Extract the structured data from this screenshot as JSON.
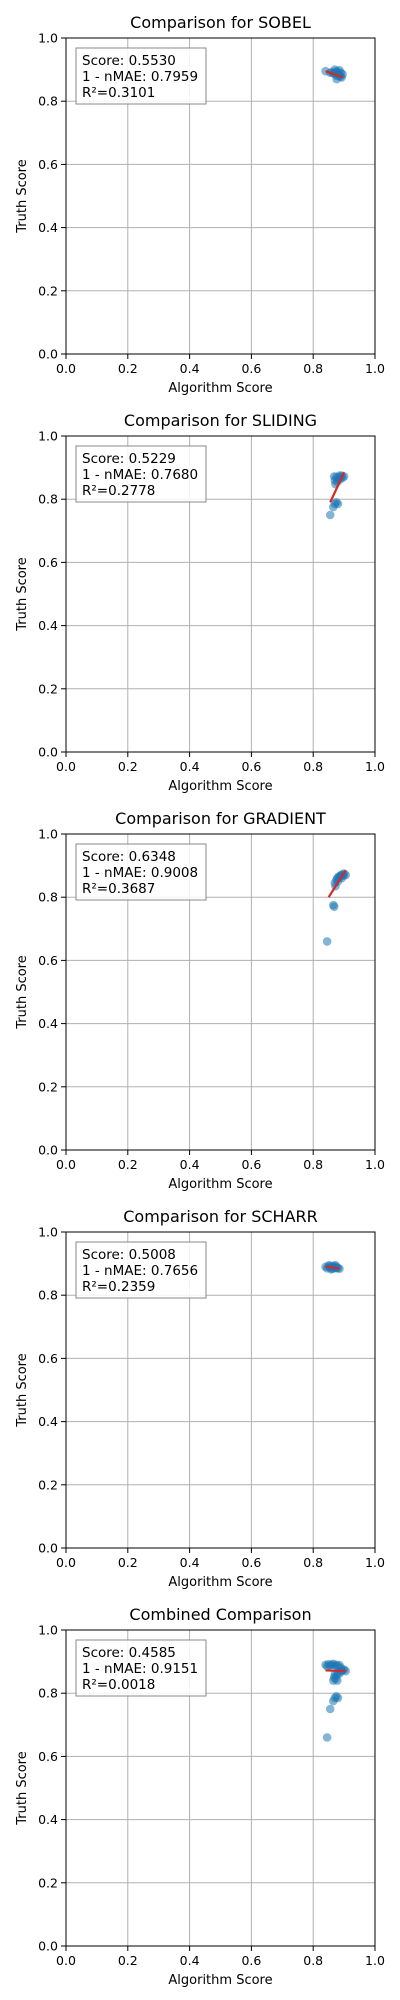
{
  "colors": {
    "point_fill": "#1f77b4",
    "fit_line": "#d62728",
    "grid": "#b0b0b0",
    "axes": "#000000"
  },
  "chart_data": [
    {
      "type": "scatter",
      "title": "Comparison for SOBEL",
      "xlabel": "Algorithm Score",
      "ylabel": "Truth Score",
      "xlim": [
        0,
        1
      ],
      "ylim": [
        0,
        1
      ],
      "xticks": [
        "0.0",
        "0.2",
        "0.4",
        "0.6",
        "0.8",
        "1.0"
      ],
      "yticks": [
        "0.0",
        "0.2",
        "0.4",
        "0.6",
        "0.8",
        "1.0"
      ],
      "grid": true,
      "stats": [
        "Score: 0.5530",
        "1 - nMAE: 0.7959",
        "R²=0.3101"
      ],
      "points": [
        [
          0.84,
          0.895
        ],
        [
          0.855,
          0.89
        ],
        [
          0.86,
          0.892
        ],
        [
          0.865,
          0.888
        ],
        [
          0.87,
          0.89
        ],
        [
          0.872,
          0.885
        ],
        [
          0.875,
          0.895
        ],
        [
          0.878,
          0.88
        ],
        [
          0.88,
          0.892
        ],
        [
          0.882,
          0.887
        ],
        [
          0.885,
          0.882
        ],
        [
          0.888,
          0.878
        ],
        [
          0.89,
          0.89
        ],
        [
          0.892,
          0.875
        ],
        [
          0.895,
          0.885
        ],
        [
          0.87,
          0.9
        ],
        [
          0.885,
          0.898
        ],
        [
          0.876,
          0.87
        ]
      ],
      "fit_line": [
        [
          0.84,
          0.895
        ],
        [
          0.895,
          0.876
        ]
      ]
    },
    {
      "type": "scatter",
      "title": "Comparison for SLIDING",
      "xlabel": "Algorithm Score",
      "ylabel": "Truth Score",
      "xlim": [
        0,
        1
      ],
      "ylim": [
        0,
        1
      ],
      "xticks": [
        "0.0",
        "0.2",
        "0.4",
        "0.6",
        "0.8",
        "1.0"
      ],
      "yticks": [
        "0.0",
        "0.2",
        "0.4",
        "0.6",
        "0.8",
        "1.0"
      ],
      "grid": true,
      "stats": [
        "Score: 0.5229",
        "1 - nMAE: 0.7680",
        "R²=0.2778"
      ],
      "points": [
        [
          0.855,
          0.75
        ],
        [
          0.865,
          0.775
        ],
        [
          0.87,
          0.785
        ],
        [
          0.875,
          0.79
        ],
        [
          0.88,
          0.785
        ],
        [
          0.87,
          0.86
        ],
        [
          0.875,
          0.87
        ],
        [
          0.88,
          0.865
        ],
        [
          0.885,
          0.875
        ],
        [
          0.89,
          0.87
        ],
        [
          0.895,
          0.868
        ],
        [
          0.9,
          0.872
        ],
        [
          0.878,
          0.855
        ],
        [
          0.872,
          0.848
        ],
        [
          0.886,
          0.862
        ],
        [
          0.892,
          0.875
        ],
        [
          0.868,
          0.872
        ]
      ],
      "fit_line": [
        [
          0.855,
          0.79
        ],
        [
          0.9,
          0.885
        ]
      ]
    },
    {
      "type": "scatter",
      "title": "Comparison for GRADIENT",
      "xlabel": "Algorithm Score",
      "ylabel": "Truth Score",
      "xlim": [
        0,
        1
      ],
      "ylim": [
        0,
        1
      ],
      "xticks": [
        "0.0",
        "0.2",
        "0.4",
        "0.6",
        "0.8",
        "1.0"
      ],
      "yticks": [
        "0.0",
        "0.2",
        "0.4",
        "0.6",
        "0.8",
        "1.0"
      ],
      "grid": true,
      "stats": [
        "Score: 0.6348",
        "1 - nMAE: 0.9008",
        "R²=0.3687"
      ],
      "points": [
        [
          0.845,
          0.66
        ],
        [
          0.865,
          0.775
        ],
        [
          0.868,
          0.77
        ],
        [
          0.87,
          0.845
        ],
        [
          0.875,
          0.855
        ],
        [
          0.878,
          0.86
        ],
        [
          0.882,
          0.865
        ],
        [
          0.885,
          0.862
        ],
        [
          0.888,
          0.868
        ],
        [
          0.89,
          0.87
        ],
        [
          0.895,
          0.872
        ],
        [
          0.9,
          0.875
        ],
        [
          0.905,
          0.87
        ],
        [
          0.872,
          0.835
        ],
        [
          0.892,
          0.86
        ],
        [
          0.898,
          0.868
        ],
        [
          0.88,
          0.85
        ]
      ],
      "fit_line": [
        [
          0.85,
          0.8
        ],
        [
          0.905,
          0.885
        ]
      ]
    },
    {
      "type": "scatter",
      "title": "Comparison for SCHARR",
      "xlabel": "Algorithm Score",
      "ylabel": "Truth Score",
      "xlim": [
        0,
        1
      ],
      "ylim": [
        0,
        1
      ],
      "xticks": [
        "0.0",
        "0.2",
        "0.4",
        "0.6",
        "0.8",
        "1.0"
      ],
      "yticks": [
        "0.0",
        "0.2",
        "0.4",
        "0.6",
        "0.8",
        "1.0"
      ],
      "grid": true,
      "stats": [
        "Score: 0.5008",
        "1 - nMAE: 0.7656",
        "R²=0.2359"
      ],
      "points": [
        [
          0.84,
          0.89
        ],
        [
          0.845,
          0.885
        ],
        [
          0.85,
          0.892
        ],
        [
          0.855,
          0.888
        ],
        [
          0.86,
          0.89
        ],
        [
          0.862,
          0.884
        ],
        [
          0.865,
          0.893
        ],
        [
          0.868,
          0.887
        ],
        [
          0.87,
          0.89
        ],
        [
          0.873,
          0.885
        ],
        [
          0.876,
          0.889
        ],
        [
          0.88,
          0.886
        ],
        [
          0.885,
          0.884
        ],
        [
          0.852,
          0.895
        ],
        [
          0.858,
          0.882
        ],
        [
          0.872,
          0.895
        ]
      ],
      "fit_line": [
        [
          0.84,
          0.891
        ],
        [
          0.885,
          0.884
        ]
      ]
    },
    {
      "type": "scatter",
      "title": "Combined Comparison",
      "xlabel": "Algorithm Score",
      "ylabel": "Truth Score",
      "xlim": [
        0,
        1
      ],
      "ylim": [
        0,
        1
      ],
      "xticks": [
        "0.0",
        "0.2",
        "0.4",
        "0.6",
        "0.8",
        "1.0"
      ],
      "yticks": [
        "0.0",
        "0.2",
        "0.4",
        "0.6",
        "0.8",
        "1.0"
      ],
      "grid": true,
      "stats": [
        "Score: 0.4585",
        "1 - nMAE: 0.9151",
        "R²=0.0018"
      ],
      "points": [
        [
          0.845,
          0.66
        ],
        [
          0.855,
          0.75
        ],
        [
          0.865,
          0.775
        ],
        [
          0.87,
          0.785
        ],
        [
          0.875,
          0.79
        ],
        [
          0.88,
          0.785
        ],
        [
          0.84,
          0.89
        ],
        [
          0.845,
          0.885
        ],
        [
          0.85,
          0.892
        ],
        [
          0.855,
          0.888
        ],
        [
          0.86,
          0.89
        ],
        [
          0.865,
          0.893
        ],
        [
          0.87,
          0.887
        ],
        [
          0.875,
          0.89
        ],
        [
          0.88,
          0.885
        ],
        [
          0.885,
          0.889
        ],
        [
          0.89,
          0.87
        ],
        [
          0.895,
          0.872
        ],
        [
          0.9,
          0.875
        ],
        [
          0.905,
          0.87
        ],
        [
          0.87,
          0.86
        ],
        [
          0.875,
          0.855
        ],
        [
          0.88,
          0.865
        ],
        [
          0.885,
          0.862
        ],
        [
          0.89,
          0.88
        ],
        [
          0.872,
          0.845
        ],
        [
          0.868,
          0.85
        ],
        [
          0.878,
          0.84
        ],
        [
          0.865,
          0.84
        ]
      ],
      "fit_line": [
        [
          0.84,
          0.872
        ],
        [
          0.905,
          0.87
        ]
      ]
    }
  ]
}
